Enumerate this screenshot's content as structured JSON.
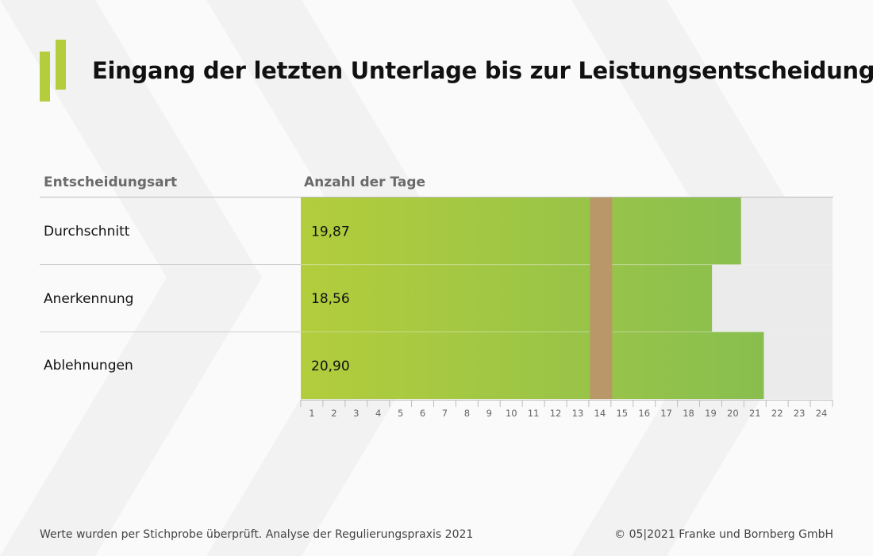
{
  "title": "Eingang der letzten Unterlage bis zur Leistungsentscheidung",
  "headers": {
    "category": "Entscheidungsart",
    "value": "Anzahl der Tage"
  },
  "rows": [
    {
      "label": "Durchschnitt",
      "value_label": "19,87"
    },
    {
      "label": "Anerkennung",
      "value_label": "18,56"
    },
    {
      "label": "Ablehnungen",
      "value_label": "20,90"
    }
  ],
  "chart_data": {
    "type": "bar",
    "orientation": "horizontal",
    "title": "Eingang der letzten Unterlage bis zur Leistungsentscheidung",
    "xlabel": "Anzahl der Tage",
    "ylabel": "Entscheidungsart",
    "categories": [
      "Durchschnitt",
      "Anerkennung",
      "Ablehnungen"
    ],
    "values": [
      19.87,
      18.56,
      20.9
    ],
    "value_labels": [
      "19,87",
      "18,56",
      "20,90"
    ],
    "xlim": [
      0,
      24
    ],
    "ticks": [
      "1",
      "2",
      "3",
      "4",
      "5",
      "6",
      "7",
      "8",
      "9",
      "10",
      "11",
      "12",
      "13",
      "14",
      "15",
      "16",
      "17",
      "18",
      "19",
      "20",
      "21",
      "22",
      "23",
      "24"
    ],
    "highlight_range": [
      13,
      14
    ],
    "colors": {
      "bar_start": "#b3cd3c",
      "bar_end": "#82bc52",
      "highlight": "#b99769",
      "track": "#ebebeb"
    }
  },
  "footer": {
    "note": "Werte wurden per Stichprobe überprüft. Analyse der Regulierungspraxis 2021",
    "copyright": "© 05|2021 Franke und Bornberg GmbH"
  }
}
